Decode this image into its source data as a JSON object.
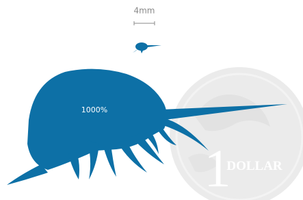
{
  "scale_bar": {
    "label": "4mm"
  },
  "magnification": "1000%",
  "coin": {
    "numeral": "1",
    "word": "DOLLAR"
  }
}
